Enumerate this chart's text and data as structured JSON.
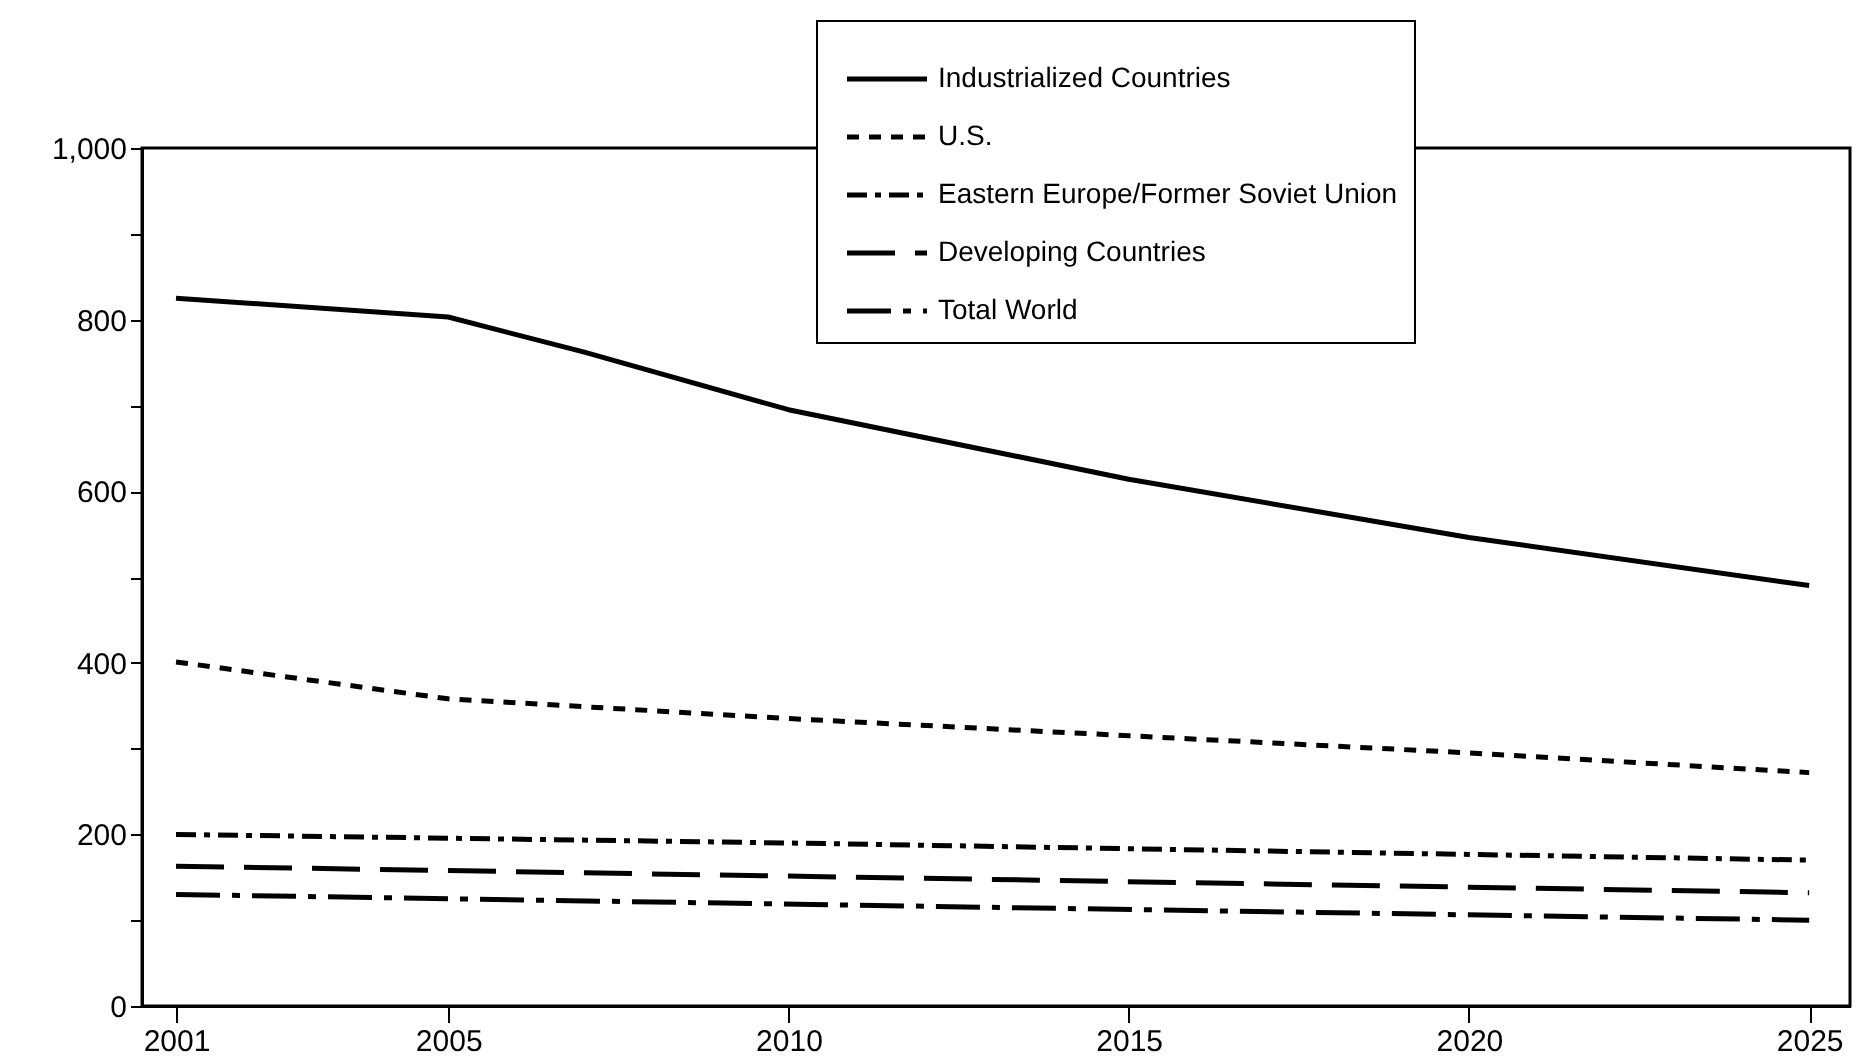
{
  "chart_data": {
    "type": "line",
    "xlim": [
      2000.5,
      2025.6
    ],
    "xticks": [
      2001,
      2005,
      2010,
      2015,
      2020,
      2025
    ],
    "ylim": [
      0,
      1000
    ],
    "yticks": [
      0,
      {
        "value": 100,
        "label": null
      },
      200,
      {
        "value": 300,
        "label": null
      },
      400,
      {
        "value": 500,
        "label": null
      },
      600,
      {
        "value": 700,
        "label": null
      },
      800,
      {
        "value": 900,
        "label": null
      },
      {
        "value": 1000,
        "label": "1,000"
      }
    ],
    "grid": false,
    "legend": "top right",
    "series": [
      {
        "name": "Industrialized Countries",
        "color": "#000000",
        "line_style": "solid",
        "x": [
          2001,
          2005,
          2007,
          2010,
          2015,
          2020,
          2025
        ],
        "values": [
          825,
          803,
          762,
          695,
          614,
          546,
          490
        ]
      },
      {
        "name": "U.S.",
        "color": "#000000",
        "line_style": "dotted",
        "x": [
          2001,
          2005,
          2010,
          2015,
          2020,
          2025
        ],
        "values": [
          401,
          358,
          335,
          315,
          295,
          272
        ]
      },
      {
        "name": "Eastern Europe/Former Soviet Union",
        "color": "#000000",
        "line_style": "dashed",
        "x": [
          2001,
          2010,
          2025
        ],
        "values": [
          200,
          190,
          170
        ]
      },
      {
        "name": "Developing Countries",
        "color": "#000000",
        "line_style": "dashed",
        "x": [
          2001,
          2025
        ],
        "values": [
          163,
          132
        ]
      },
      {
        "name": "Total World",
        "color": "#000000",
        "line_style": "dashed",
        "x": [
          2001,
          2025
        ],
        "values": [
          130,
          100
        ]
      }
    ]
  }
}
